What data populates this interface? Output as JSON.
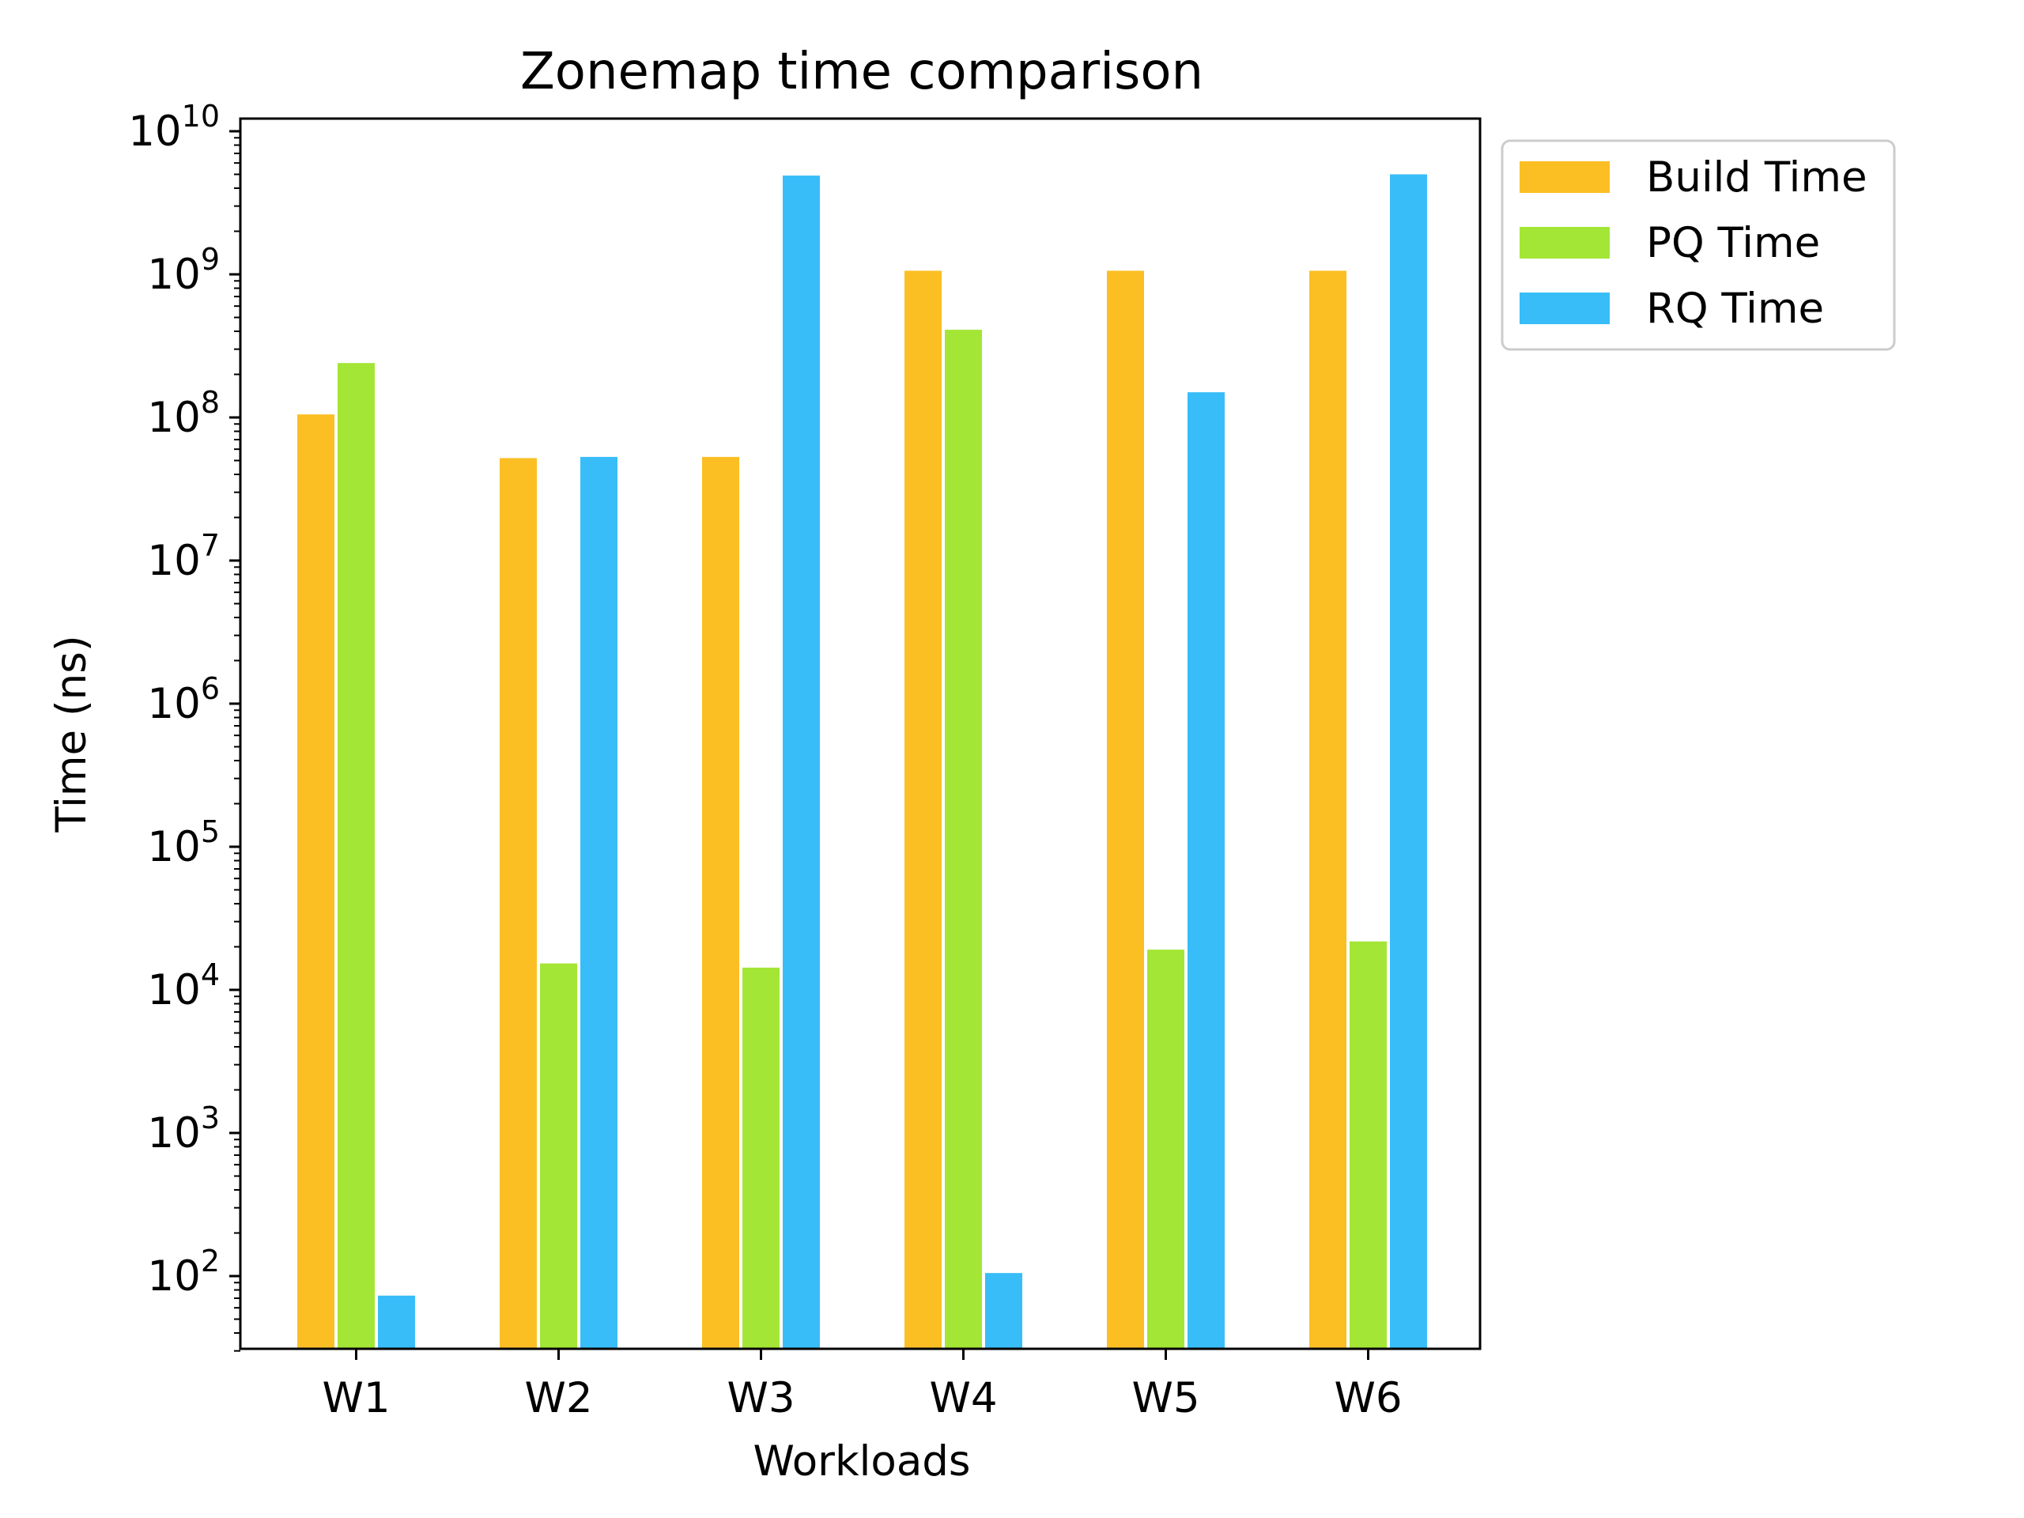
{
  "chart_data": {
    "type": "bar",
    "title": "Zonemap time comparison",
    "xlabel": "Workloads",
    "ylabel": "Time (ns)",
    "yscale": "log",
    "ylim": [
      30,
      10000000000
    ],
    "grid": false,
    "legend_position": "outside-top-right",
    "categories": [
      "W1",
      "W2",
      "W3",
      "W4",
      "W5",
      "W6"
    ],
    "series": [
      {
        "name": "Build Time",
        "color": "#FBBF24",
        "values": [
          105000000,
          52000000,
          53000000,
          1060000000,
          1060000000,
          1060000000
        ]
      },
      {
        "name": "PQ Time",
        "color": "#A3E635",
        "values": [
          240000000,
          15300,
          14300,
          410000000,
          19100,
          21800
        ]
      },
      {
        "name": "RQ Time",
        "color": "#38BDF8",
        "values": [
          73,
          53000000,
          4900000000,
          105,
          150000000,
          5000000000
        ]
      }
    ],
    "y_ticks": [
      {
        "base": "10",
        "exp": "2"
      },
      {
        "base": "10",
        "exp": "3"
      },
      {
        "base": "10",
        "exp": "4"
      },
      {
        "base": "10",
        "exp": "5"
      },
      {
        "base": "10",
        "exp": "6"
      },
      {
        "base": "10",
        "exp": "7"
      },
      {
        "base": "10",
        "exp": "8"
      },
      {
        "base": "10",
        "exp": "9"
      },
      {
        "base": "10",
        "exp": "10"
      }
    ]
  }
}
